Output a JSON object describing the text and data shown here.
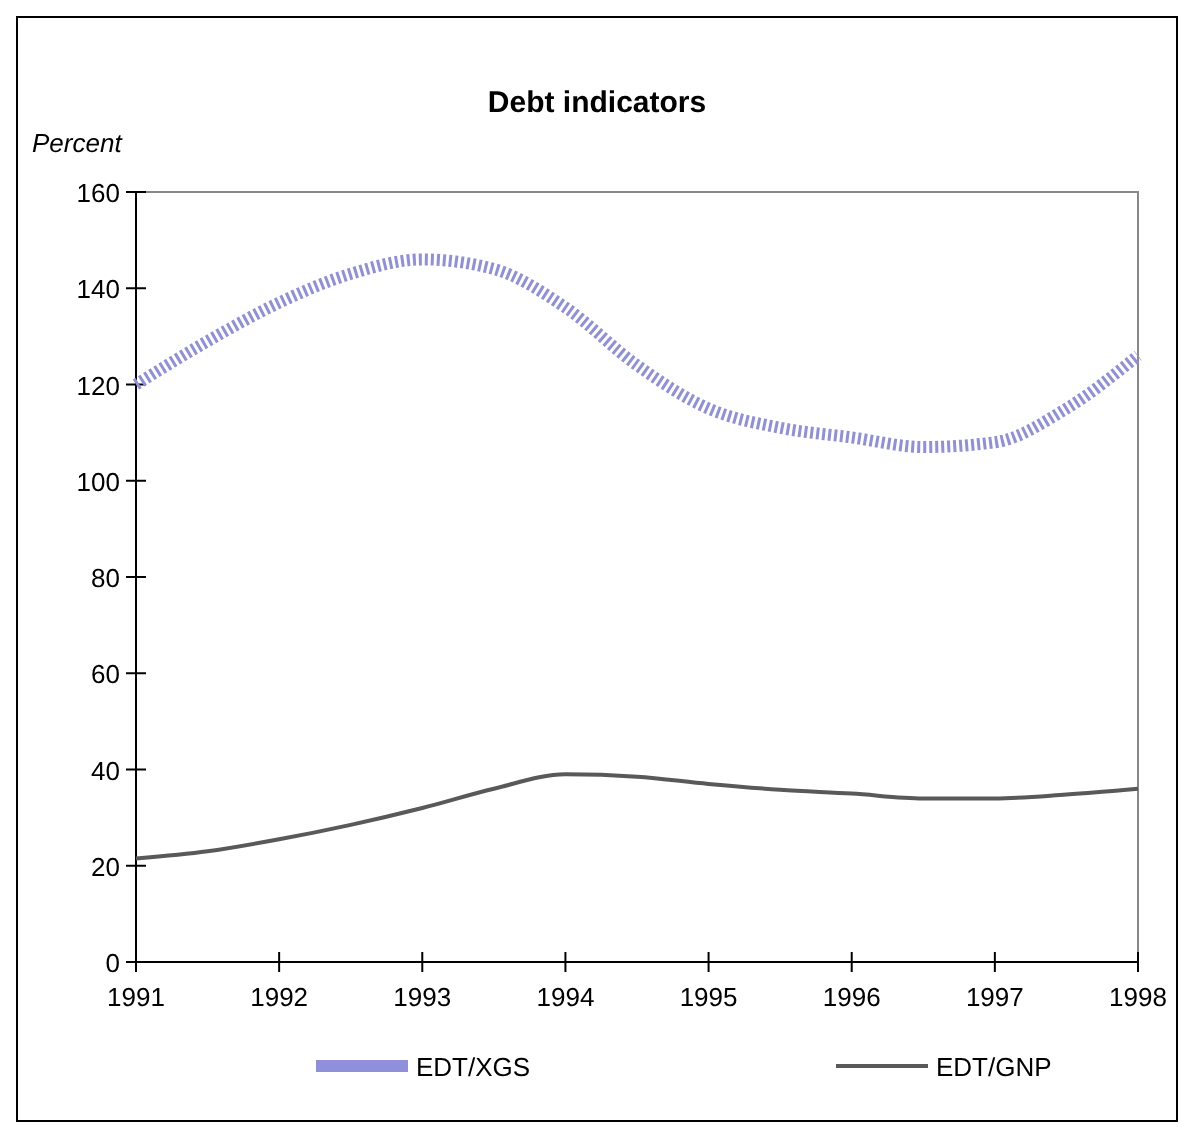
{
  "chart_data": {
    "type": "line",
    "title": "Debt indicators",
    "ylabel": "Percent",
    "x": [
      1991,
      1991.5,
      1992,
      1992.5,
      1993,
      1993.5,
      1994,
      1994.5,
      1995,
      1995.5,
      1996,
      1996.5,
      1997,
      1997.5,
      1998
    ],
    "xlim": [
      1991,
      1998
    ],
    "xticks": [
      1991,
      1992,
      1993,
      1994,
      1995,
      1996,
      1997,
      1998
    ],
    "ylim": [
      0,
      160
    ],
    "yticks": [
      0,
      20,
      40,
      60,
      80,
      100,
      120,
      140,
      160
    ],
    "legend": "bottom",
    "grid": false,
    "series": [
      {
        "name": "EDT/XGS",
        "color": "#8f8fdc",
        "line_style": "dotted",
        "values": [
          120,
          129,
          137,
          143,
          146,
          144,
          136,
          124,
          115,
          111,
          109,
          107,
          108,
          115,
          126
        ]
      },
      {
        "name": "EDT/GNP",
        "color": "#595959",
        "line_style": "solid",
        "values": [
          21.5,
          23,
          25.5,
          28.5,
          32,
          36,
          39,
          38.5,
          37,
          35.8,
          35,
          34,
          34,
          34.8,
          36
        ]
      }
    ]
  }
}
